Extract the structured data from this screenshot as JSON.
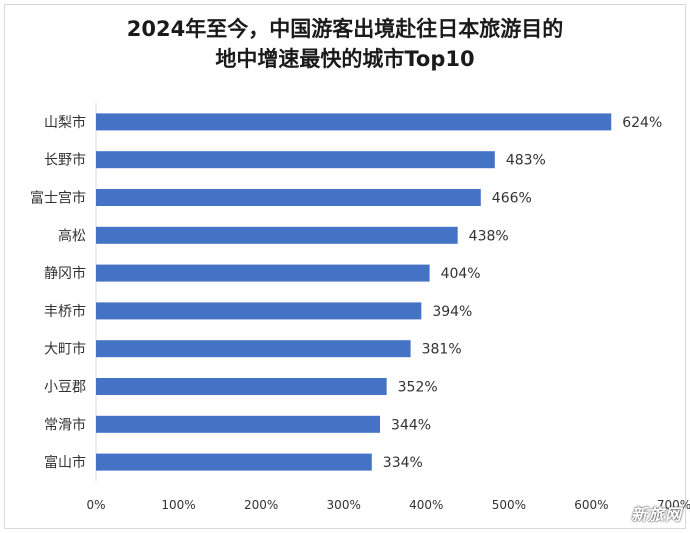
{
  "chart_data": {
    "type": "bar",
    "orientation": "horizontal",
    "title_line1": "2024年至今，中国游客出境赴往日本旅游目的",
    "title_line2": "地中增速最快的城市Top10",
    "categories": [
      "山梨市",
      "长野市",
      "富士宫市",
      "高松",
      "静冈市",
      "丰桥市",
      "大町市",
      "小豆郡",
      "常滑市",
      "富山市"
    ],
    "values": [
      624,
      483,
      466,
      438,
      404,
      394,
      381,
      352,
      344,
      334
    ],
    "value_labels": [
      "624%",
      "483%",
      "466%",
      "438%",
      "404%",
      "394%",
      "381%",
      "352%",
      "344%",
      "334%"
    ],
    "xlim": [
      0,
      700
    ],
    "ticks": [
      0,
      100,
      200,
      300,
      400,
      500,
      600,
      700
    ],
    "tick_labels": [
      "0%",
      "100%",
      "200%",
      "300%",
      "400%",
      "500%",
      "600%",
      "700%"
    ],
    "bar_color": "#4472c4",
    "grid": false,
    "legend": "none"
  },
  "watermark": "新旅网"
}
